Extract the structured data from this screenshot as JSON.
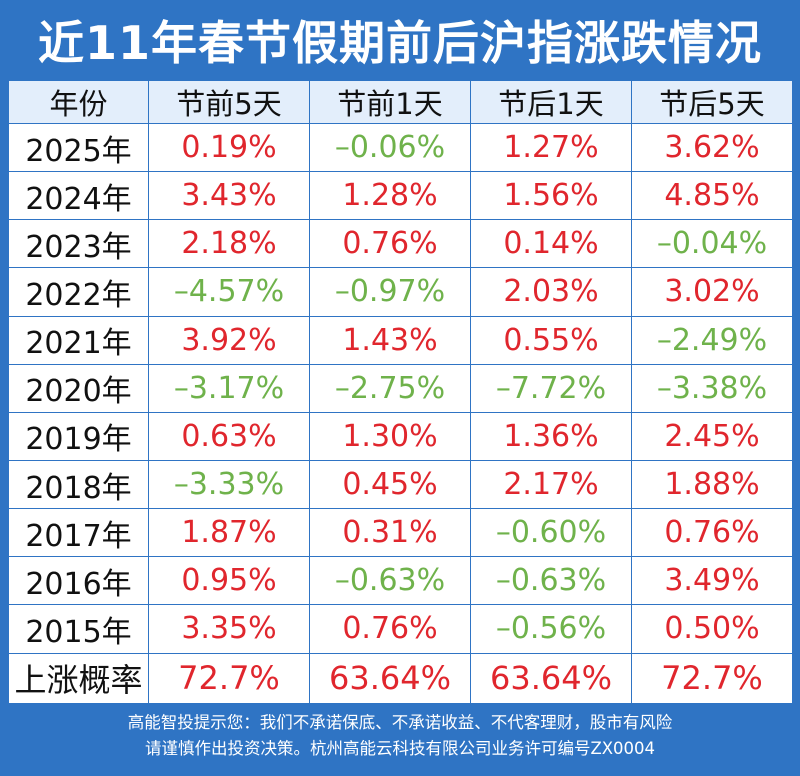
{
  "title": "近11年春节假期前后沪指涨跌情况",
  "colors": {
    "up": "#e0262d",
    "down": "#6fb24b",
    "brand": "#2f74c4"
  },
  "chart_data": {
    "type": "table",
    "title": "近11年春节假期前后沪指涨跌情况",
    "columns": [
      "年份",
      "节前5天",
      "节前1天",
      "节后1天",
      "节后5天"
    ],
    "rows": [
      {
        "year": "2025年",
        "values": [
          "0.19%",
          "-0.06%",
          "1.27%",
          "3.62%"
        ]
      },
      {
        "year": "2024年",
        "values": [
          "3.43%",
          "1.28%",
          "1.56%",
          "4.85%"
        ]
      },
      {
        "year": "2023年",
        "values": [
          "2.18%",
          "0.76%",
          "0.14%",
          "-0.04%"
        ]
      },
      {
        "year": "2022年",
        "values": [
          "-4.57%",
          "-0.97%",
          "2.03%",
          "3.02%"
        ]
      },
      {
        "year": "2021年",
        "values": [
          "3.92%",
          "1.43%",
          "0.55%",
          "-2.49%"
        ]
      },
      {
        "year": "2020年",
        "values": [
          "-3.17%",
          "-2.75%",
          "-7.72%",
          "-3.38%"
        ]
      },
      {
        "year": "2019年",
        "values": [
          "0.63%",
          "1.30%",
          "1.36%",
          "2.45%"
        ]
      },
      {
        "year": "2018年",
        "values": [
          "-3.33%",
          "0.45%",
          "2.17%",
          "1.88%"
        ]
      },
      {
        "year": "2017年",
        "values": [
          "1.87%",
          "0.31%",
          "-0.60%",
          "0.76%"
        ]
      },
      {
        "year": "2016年",
        "values": [
          "0.95%",
          "-0.63%",
          "-0.63%",
          "3.49%"
        ]
      },
      {
        "year": "2015年",
        "values": [
          "3.35%",
          "0.76%",
          "-0.56%",
          "0.50%"
        ]
      }
    ],
    "summary": {
      "label": "上涨概率",
      "values": [
        "72.7%",
        "63.64%",
        "63.64%",
        "72.7%"
      ]
    }
  },
  "footer": {
    "line1": "高能智投提示您：我们不承诺保底、不承诺收益、不代客理财，股市有风险",
    "line2": "请谨慎作出投资决策。杭州高能云科技有限公司业务许可编号ZX0004"
  }
}
